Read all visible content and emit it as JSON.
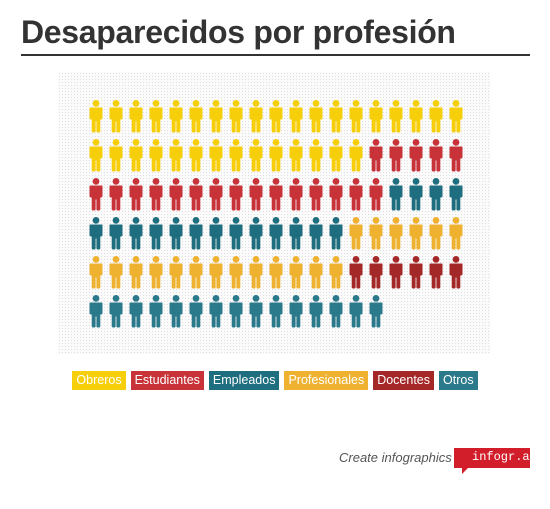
{
  "header": {
    "title": "Desaparecidos por profesión"
  },
  "chart_data": {
    "type": "pictogram",
    "title": "Desaparecidos por profesión",
    "columns": 19,
    "series": [
      {
        "name": "Obreros",
        "value": 33,
        "color": "#f6cf0a"
      },
      {
        "name": "Estudiantes",
        "value": 20,
        "color": "#c8333a"
      },
      {
        "name": "Empleados",
        "value": 17,
        "color": "#1e6e7f"
      },
      {
        "name": "Profesionales",
        "value": 19,
        "color": "#efb230"
      },
      {
        "name": "Docentes",
        "value": 6,
        "color": "#a52828"
      },
      {
        "name": "Otros",
        "value": 15,
        "color": "#2a7a8c"
      }
    ],
    "legend_position": "bottom"
  },
  "footer": {
    "text": "Create infographics",
    "badge": "infogr.am"
  }
}
